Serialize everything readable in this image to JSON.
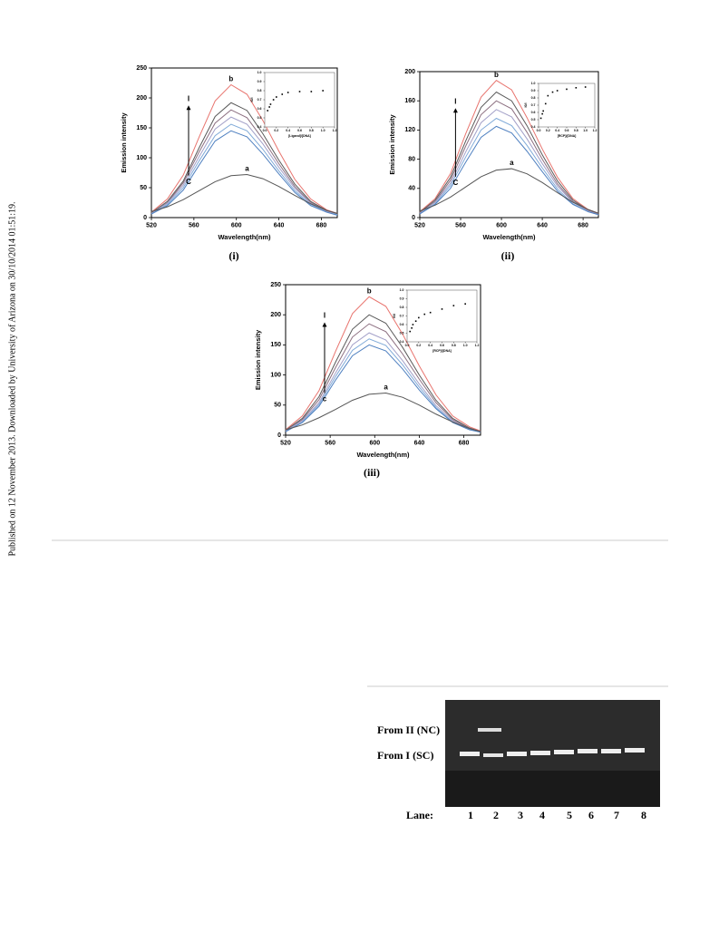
{
  "side_note": "Published on 12 November 2013. Downloaded by University of Arizona on 30/10/2014 01:51:19.",
  "chart_data": [
    {
      "type": "line",
      "caption": "(i)",
      "xlabel": "Wavelength(nm)",
      "ylabel": "Emission intensity",
      "x": [
        520,
        535,
        550,
        565,
        580,
        595,
        610,
        625,
        640,
        655,
        670,
        685,
        695
      ],
      "xlim": [
        520,
        695
      ],
      "xticks": [
        520,
        560,
        600,
        640,
        680
      ],
      "ylim": [
        0,
        250
      ],
      "yticks": [
        0,
        50,
        100,
        150,
        200,
        250
      ],
      "annotations": {
        "top": "b",
        "bottom": "a",
        "high": "I",
        "low": "C"
      },
      "series": [
        {
          "color": "#e8746e",
          "values": [
            9,
            31,
            71,
            135,
            195,
            222,
            206,
            162,
            111,
            64,
            31,
            13,
            7
          ]
        },
        {
          "color": "#5a5a5a",
          "values": [
            8,
            27,
            61,
            117,
            169,
            192,
            179,
            140,
            96,
            56,
            27,
            12,
            6
          ]
        },
        {
          "color": "#8c6f80",
          "values": [
            7,
            25,
            58,
            110,
            158,
            180,
            167,
            131,
            90,
            52,
            25,
            11,
            5
          ]
        },
        {
          "color": "#a3a0c8",
          "values": [
            7,
            24,
            54,
            102,
            148,
            168,
            156,
            123,
            84,
            49,
            24,
            10,
            5
          ]
        },
        {
          "color": "#80aad8",
          "values": [
            6,
            22,
            50,
            95,
            137,
            156,
            145,
            114,
            78,
            45,
            22,
            9,
            5
          ]
        },
        {
          "color": "#4f80c0",
          "values": [
            6,
            20,
            46,
            88,
            128,
            145,
            135,
            106,
            73,
            42,
            20,
            9,
            4
          ]
        },
        {
          "color": "#555555",
          "values": [
            10,
            18,
            30,
            45,
            60,
            70,
            72,
            65,
            52,
            37,
            23,
            12,
            7
          ]
        }
      ],
      "inset": {
        "type": "scatter",
        "xlabel": "[Ligand]/[DNA]",
        "ylabel": "I0/I",
        "x": [
          0.05,
          0.08,
          0.1,
          0.15,
          0.2,
          0.3,
          0.4,
          0.6,
          0.8,
          1.0
        ],
        "values": [
          0.58,
          0.62,
          0.65,
          0.7,
          0.73,
          0.76,
          0.78,
          0.79,
          0.79,
          0.8
        ],
        "xlim": [
          0,
          1.2
        ],
        "xticks": [
          {
            "value": 0,
            "label": "0.0"
          },
          0.2,
          0.4,
          0.6,
          0.8,
          {
            "value": 1,
            "label": "1.0"
          },
          1.2
        ],
        "ylim": [
          0.4,
          1
        ],
        "yticks": [
          0.4,
          0.5,
          0.6,
          0.7,
          0.8,
          0.9,
          {
            "value": 1,
            "label": "1.0"
          }
        ]
      }
    },
    {
      "type": "line",
      "caption": "(ii)",
      "xlabel": "Wavelength(nm)",
      "ylabel": "Emission intensity",
      "x": [
        520,
        535,
        550,
        565,
        580,
        595,
        610,
        625,
        640,
        655,
        670,
        685,
        695
      ],
      "xlim": [
        520,
        695
      ],
      "xticks": [
        520,
        560,
        600,
        640,
        680
      ],
      "ylim": [
        0,
        200
      ],
      "yticks": [
        0,
        40,
        80,
        120,
        160,
        200
      ],
      "annotations": {
        "top": "b",
        "bottom": "a",
        "high": "I",
        "low": "C"
      },
      "series": [
        {
          "color": "#e8746e",
          "values": [
            8,
            26,
            60,
            115,
            165,
            188,
            175,
            137,
            94,
            55,
            26,
            11,
            6
          ]
        },
        {
          "color": "#5a5a5a",
          "values": [
            7,
            24,
            55,
            105,
            151,
            172,
            160,
            126,
            86,
            50,
            24,
            10,
            5
          ]
        },
        {
          "color": "#8c6f80",
          "values": [
            6,
            22,
            51,
            98,
            141,
            160,
            149,
            117,
            80,
            46,
            22,
            10,
            5
          ]
        },
        {
          "color": "#a3a0c8",
          "values": [
            6,
            21,
            47,
            90,
            130,
            148,
            138,
            108,
            74,
            43,
            21,
            9,
            4
          ]
        },
        {
          "color": "#80aad8",
          "values": [
            5,
            19,
            44,
            83,
            120,
            136,
            126,
            99,
            68,
            39,
            19,
            8,
            4
          ]
        },
        {
          "color": "#4f80c0",
          "values": [
            5,
            18,
            40,
            76,
            110,
            125,
            116,
            91,
            63,
            36,
            18,
            8,
            4
          ]
        },
        {
          "color": "#555555",
          "values": [
            9,
            17,
            28,
            42,
            56,
            65,
            67,
            60,
            48,
            34,
            21,
            11,
            6
          ]
        }
      ],
      "inset": {
        "type": "scatter",
        "xlabel": "[RCP]/[DNA]",
        "ylabel": "I0/I",
        "x": [
          0.05,
          0.08,
          0.1,
          0.15,
          0.2,
          0.3,
          0.4,
          0.6,
          0.8,
          1.0
        ],
        "values": [
          0.52,
          0.58,
          0.62,
          0.72,
          0.83,
          0.88,
          0.9,
          0.92,
          0.94,
          0.95
        ],
        "xlim": [
          0,
          1.2
        ],
        "xticks": [
          {
            "value": 0,
            "label": "0.0"
          },
          0.2,
          0.4,
          0.6,
          0.8,
          {
            "value": 1,
            "label": "1.0"
          },
          1.2
        ],
        "ylim": [
          0.4,
          1
        ],
        "yticks": [
          0.4,
          0.5,
          0.6,
          0.7,
          0.8,
          0.9,
          {
            "value": 1,
            "label": "1.0"
          }
        ]
      }
    },
    {
      "type": "line",
      "caption": "(iii)",
      "xlabel": "Wavelength(nm)",
      "ylabel": "Emission intensity",
      "x": [
        520,
        535,
        550,
        565,
        580,
        595,
        610,
        625,
        640,
        655,
        670,
        685,
        695
      ],
      "xlim": [
        520,
        695
      ],
      "xticks": [
        520,
        560,
        600,
        640,
        680
      ],
      "ylim": [
        0,
        250
      ],
      "yticks": [
        0,
        50,
        100,
        150,
        200,
        250
      ],
      "annotations": {
        "top": "b",
        "bottom": "a",
        "high": "I",
        "low": "c"
      },
      "series": [
        {
          "color": "#e8746e",
          "values": [
            9,
            32,
            74,
            140,
            202,
            230,
            214,
            168,
            115,
            67,
            32,
            14,
            7
          ]
        },
        {
          "color": "#5a5a5a",
          "values": [
            8,
            28,
            64,
            122,
            176,
            200,
            186,
            146,
            100,
            58,
            28,
            12,
            6
          ]
        },
        {
          "color": "#8c6f80",
          "values": [
            7,
            26,
            59,
            113,
            163,
            185,
            172,
            135,
            93,
            54,
            26,
            11,
            6
          ]
        },
        {
          "color": "#a3a0c8",
          "values": [
            7,
            24,
            54,
            104,
            150,
            170,
            158,
            124,
            85,
            49,
            24,
            10,
            5
          ]
        },
        {
          "color": "#80aad8",
          "values": [
            6,
            22,
            51,
            98,
            141,
            160,
            149,
            117,
            80,
            46,
            22,
            10,
            5
          ]
        },
        {
          "color": "#4f80c0",
          "values": [
            6,
            21,
            48,
            92,
            132,
            150,
            140,
            110,
            75,
            44,
            21,
            9,
            5
          ]
        },
        {
          "color": "#555555",
          "values": [
            9,
            17,
            29,
            43,
            58,
            68,
            70,
            63,
            50,
            35,
            22,
            11,
            6
          ]
        }
      ],
      "inset": {
        "type": "scatter",
        "xlabel": "[RCP]/[DNA]",
        "ylabel": "I0/I",
        "x": [
          0.05,
          0.08,
          0.1,
          0.15,
          0.2,
          0.3,
          0.4,
          0.6,
          0.8,
          1.0
        ],
        "values": [
          0.52,
          0.56,
          0.6,
          0.64,
          0.68,
          0.72,
          0.74,
          0.78,
          0.82,
          0.84
        ],
        "xlim": [
          0,
          1.2
        ],
        "xticks": [
          {
            "value": 0,
            "label": "0.0"
          },
          0.2,
          0.4,
          0.6,
          0.8,
          {
            "value": 1,
            "label": "1.0"
          },
          1.2
        ],
        "ylim": [
          0.4,
          1
        ],
        "yticks": [
          0.4,
          0.5,
          0.6,
          0.7,
          0.8,
          0.9,
          {
            "value": 1,
            "label": "1.0"
          }
        ]
      }
    }
  ],
  "gel": {
    "labels": [
      "From II (NC)",
      "From I (SC)"
    ],
    "lane_title": "Lane:",
    "lanes": [
      "1",
      "2",
      "3",
      "4",
      "5",
      "6",
      "7",
      "8"
    ]
  }
}
